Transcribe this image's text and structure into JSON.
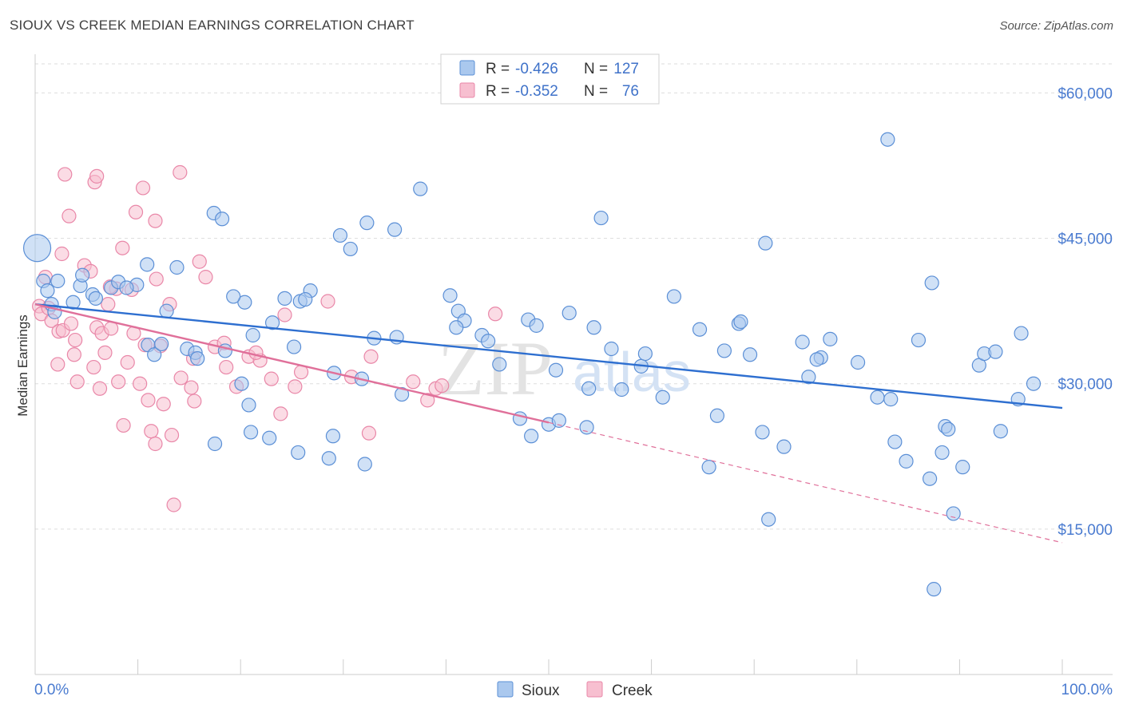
{
  "title": "SIOUX VS CREEK MEDIAN EARNINGS CORRELATION CHART",
  "source": "Source: ZipAtlas.com",
  "watermark": {
    "part1": "ZIP",
    "part2": "atlas"
  },
  "colors": {
    "sioux_fill": "#aac8ee",
    "sioux_stroke": "#5b8fd6",
    "sioux_line": "#2e6fd0",
    "creek_fill": "#f7bfd0",
    "creek_stroke": "#e987a8",
    "creek_line": "#e0709a",
    "grid": "#dddddd",
    "tick_text": "#4a7bd0"
  },
  "legend_top": [
    {
      "r_label": "R =",
      "r_value": "-0.426",
      "n_label": "N =",
      "n_value": "127"
    },
    {
      "r_label": "R =",
      "r_value": "-0.352",
      "n_label": "N =",
      "n_value": "76"
    }
  ],
  "legend_bottom": [
    "Sioux",
    "Creek"
  ],
  "chart_data": {
    "type": "scatter",
    "ylabel": "Median Earnings",
    "xlim": [
      0,
      100
    ],
    "ylim": [
      0,
      63000
    ],
    "y_ticks": [
      15000,
      30000,
      45000,
      60000
    ],
    "y_tick_labels": [
      "$15,000",
      "$30,000",
      "$45,000",
      "$60,000"
    ],
    "x_tick_labels": [
      "0.0%",
      "100.0%"
    ],
    "grid": true,
    "legend_placement": "top-center",
    "series": [
      {
        "name": "Sioux",
        "trend": {
          "x": [
            0,
            100
          ],
          "y": [
            38200,
            27500
          ]
        },
        "points": [
          [
            0.2,
            44000,
            "big"
          ],
          [
            0.8,
            40600
          ],
          [
            1.2,
            39600
          ],
          [
            2.2,
            40600
          ],
          [
            1.6,
            38200
          ],
          [
            1.9,
            37400
          ],
          [
            3.7,
            38400
          ],
          [
            4.4,
            40100
          ],
          [
            5.6,
            39200
          ],
          [
            4.6,
            41200
          ],
          [
            5.9,
            38800
          ],
          [
            7.4,
            39900
          ],
          [
            9.9,
            40200
          ],
          [
            8.1,
            40500
          ],
          [
            8.9,
            39900
          ],
          [
            10.9,
            42300
          ],
          [
            13.8,
            42000
          ],
          [
            17.4,
            47600
          ],
          [
            18.2,
            47000
          ],
          [
            12.8,
            37500
          ],
          [
            11.0,
            34000
          ],
          [
            11.6,
            33000
          ],
          [
            12.3,
            34100
          ],
          [
            14.8,
            33600
          ],
          [
            15.6,
            33200
          ],
          [
            15.8,
            32600
          ],
          [
            21.2,
            35000
          ],
          [
            23.1,
            36300
          ],
          [
            24.3,
            38800
          ],
          [
            25.8,
            38500
          ],
          [
            26.8,
            39600
          ],
          [
            26.3,
            38700
          ],
          [
            20.4,
            38400
          ],
          [
            19.3,
            39000
          ],
          [
            18.5,
            33400
          ],
          [
            17.5,
            23800
          ],
          [
            20.1,
            30000
          ],
          [
            20.8,
            27800
          ],
          [
            21.0,
            25000
          ],
          [
            22.8,
            24400
          ],
          [
            25.6,
            22900
          ],
          [
            25.2,
            33800
          ],
          [
            28.6,
            22300
          ],
          [
            29.0,
            24600
          ],
          [
            29.1,
            31100
          ],
          [
            31.8,
            30500
          ],
          [
            32.1,
            21700
          ],
          [
            30.7,
            43900
          ],
          [
            29.7,
            45300
          ],
          [
            32.3,
            46600
          ],
          [
            35.0,
            45900
          ],
          [
            37.5,
            50100
          ],
          [
            35.2,
            34800
          ],
          [
            33.0,
            34700
          ],
          [
            35.7,
            28900
          ],
          [
            40.4,
            39100
          ],
          [
            41.2,
            37500
          ],
          [
            41.8,
            36500
          ],
          [
            41.0,
            35800
          ],
          [
            43.5,
            35000
          ],
          [
            44.1,
            34400
          ],
          [
            45.2,
            32000
          ],
          [
            47.2,
            26400
          ],
          [
            48.0,
            36600
          ],
          [
            48.8,
            36000
          ],
          [
            50.0,
            25800
          ],
          [
            48.3,
            24600
          ],
          [
            50.7,
            31400
          ],
          [
            51.0,
            26200
          ],
          [
            52.0,
            37300
          ],
          [
            53.7,
            25500
          ],
          [
            53.9,
            29500
          ],
          [
            54.4,
            35800
          ],
          [
            55.1,
            47100
          ],
          [
            56.1,
            33600
          ],
          [
            57.1,
            29400
          ],
          [
            59.0,
            31800
          ],
          [
            59.4,
            33100
          ],
          [
            61.1,
            28600
          ],
          [
            62.2,
            39000
          ],
          [
            64.7,
            35600
          ],
          [
            65.6,
            21400
          ],
          [
            66.4,
            26700
          ],
          [
            67.1,
            33400
          ],
          [
            68.5,
            36200
          ],
          [
            68.7,
            36400
          ],
          [
            69.6,
            33000
          ],
          [
            70.8,
            25000
          ],
          [
            71.1,
            44500
          ],
          [
            71.4,
            16000
          ],
          [
            72.9,
            23500
          ],
          [
            74.7,
            34300
          ],
          [
            75.3,
            30700
          ],
          [
            76.5,
            32700
          ],
          [
            76.1,
            32500
          ],
          [
            77.4,
            34600
          ],
          [
            80.1,
            32200
          ],
          [
            82.0,
            28600
          ],
          [
            83.3,
            28400
          ],
          [
            83.7,
            24000
          ],
          [
            84.8,
            22000
          ],
          [
            83.0,
            55200
          ],
          [
            86.0,
            34500
          ],
          [
            87.1,
            20200
          ],
          [
            87.3,
            40400
          ],
          [
            88.3,
            22900
          ],
          [
            88.6,
            25600
          ],
          [
            88.9,
            25300
          ],
          [
            89.4,
            16600
          ],
          [
            90.3,
            21400
          ],
          [
            91.9,
            31900
          ],
          [
            92.4,
            33100
          ],
          [
            93.5,
            33300
          ],
          [
            94.0,
            25100
          ],
          [
            96.0,
            35200
          ],
          [
            95.7,
            28400
          ],
          [
            97.2,
            30000
          ],
          [
            87.5,
            8800
          ]
        ]
      },
      {
        "name": "Creek",
        "trend": {
          "x": [
            0,
            50
          ],
          "y": [
            38200,
            26000
          ]
        },
        "trend_dashed": {
          "x": [
            50,
            100
          ],
          "y": [
            26000,
            13600
          ]
        },
        "points": [
          [
            0.4,
            38000
          ],
          [
            0.6,
            37200
          ],
          [
            1.3,
            37800
          ],
          [
            1.0,
            41000
          ],
          [
            1.6,
            36500
          ],
          [
            2.3,
            35400
          ],
          [
            2.2,
            32000
          ],
          [
            2.7,
            35500
          ],
          [
            2.6,
            43400
          ],
          [
            3.5,
            36200
          ],
          [
            3.9,
            34500
          ],
          [
            3.8,
            33000
          ],
          [
            4.1,
            30200
          ],
          [
            4.8,
            42200
          ],
          [
            5.4,
            41600
          ],
          [
            5.7,
            31700
          ],
          [
            6.0,
            35800
          ],
          [
            6.5,
            35200
          ],
          [
            6.8,
            33200
          ],
          [
            7.1,
            38200
          ],
          [
            7.4,
            35700
          ],
          [
            7.9,
            39800
          ],
          [
            7.3,
            40000
          ],
          [
            8.1,
            30200
          ],
          [
            8.6,
            25700
          ],
          [
            9.0,
            32200
          ],
          [
            9.6,
            35200
          ],
          [
            10.2,
            30000
          ],
          [
            10.7,
            34000
          ],
          [
            11.0,
            28300
          ],
          [
            11.3,
            25100
          ],
          [
            11.7,
            23800
          ],
          [
            12.5,
            27900
          ],
          [
            13.3,
            24700
          ],
          [
            13.1,
            38200
          ],
          [
            14.2,
            30600
          ],
          [
            15.2,
            29600
          ],
          [
            15.5,
            28200
          ],
          [
            15.4,
            32600
          ],
          [
            16.0,
            42600
          ],
          [
            16.6,
            41000
          ],
          [
            17.5,
            33800
          ],
          [
            18.4,
            34200
          ],
          [
            18.6,
            31700
          ],
          [
            19.6,
            29700
          ],
          [
            20.8,
            32800
          ],
          [
            21.9,
            32400
          ],
          [
            21.5,
            33200
          ],
          [
            23.0,
            30500
          ],
          [
            23.9,
            26900
          ],
          [
            24.3,
            37100
          ],
          [
            25.3,
            29700
          ],
          [
            25.9,
            31200
          ],
          [
            28.5,
            38500
          ],
          [
            30.8,
            30700
          ],
          [
            32.5,
            24900
          ],
          [
            32.7,
            32800
          ],
          [
            36.8,
            30200
          ],
          [
            38.2,
            28300
          ],
          [
            39.0,
            29500
          ],
          [
            39.6,
            29800
          ],
          [
            44.8,
            37200
          ],
          [
            2.9,
            51600
          ],
          [
            5.8,
            50800
          ],
          [
            6.0,
            51400
          ],
          [
            9.8,
            47700
          ],
          [
            10.5,
            50200
          ],
          [
            11.7,
            46800
          ],
          [
            14.1,
            51800
          ],
          [
            13.5,
            17500
          ],
          [
            6.3,
            29500
          ],
          [
            8.5,
            44000
          ],
          [
            3.3,
            47300
          ],
          [
            12.2,
            33900
          ],
          [
            11.8,
            40800
          ],
          [
            9.4,
            39700
          ]
        ]
      }
    ]
  }
}
